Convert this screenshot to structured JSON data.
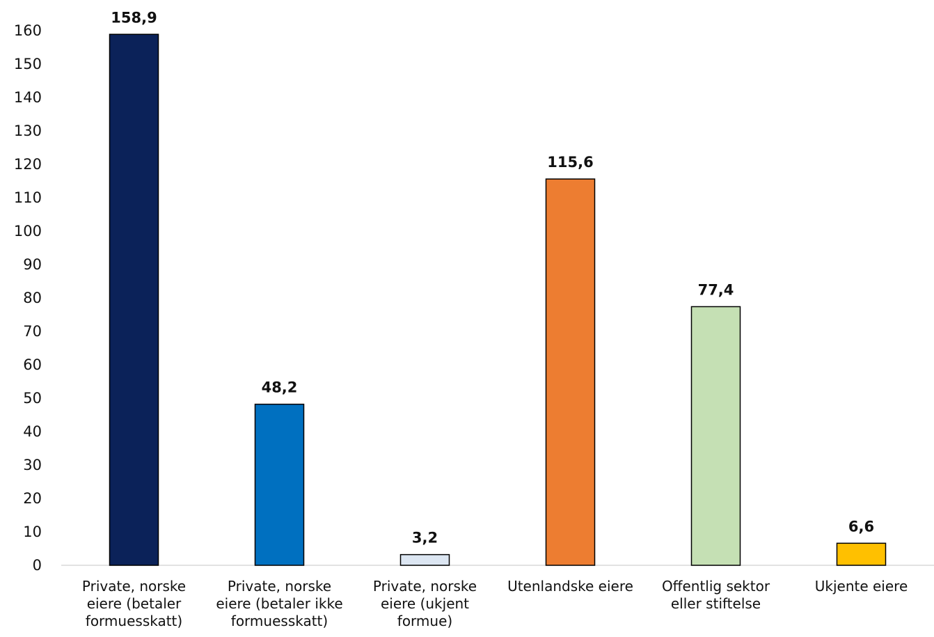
{
  "chart_data": {
    "type": "bar",
    "categories": [
      [
        "Private, norske",
        "eiere (betaler",
        "formuesskatt)"
      ],
      [
        "Private, norske",
        "eiere (betaler ikke",
        "formuesskatt)"
      ],
      [
        "Private, norske",
        "eiere (ukjent",
        "formue)"
      ],
      [
        "Utenlandske eiere"
      ],
      [
        "Offentlig sektor",
        "eller stiftelse"
      ],
      [
        "Ukjente eiere"
      ]
    ],
    "values": [
      158.9,
      48.2,
      3.2,
      115.6,
      77.4,
      6.6
    ],
    "value_labels": [
      "158,9",
      "48,2",
      "3,2",
      "115,6",
      "77,4",
      "6,6"
    ],
    "colors": [
      "#0b2259",
      "#0070c0",
      "#dce6f2",
      "#ed7d31",
      "#c5e0b4",
      "#ffc000"
    ],
    "yticks": [
      "0",
      "10",
      "20",
      "30",
      "40",
      "50",
      "60",
      "70",
      "80",
      "90",
      "100",
      "110",
      "120",
      "130",
      "140",
      "150",
      "160"
    ],
    "ylim": [
      0,
      160
    ],
    "title": "",
    "xlabel": "",
    "ylabel": "",
    "grid": false,
    "legend": "none"
  }
}
